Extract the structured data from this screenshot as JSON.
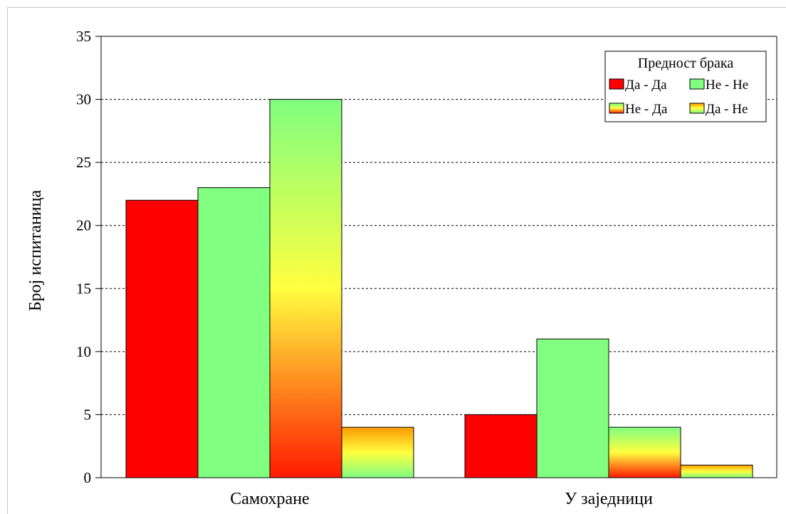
{
  "chart_data": {
    "type": "bar",
    "title": "",
    "xlabel": "",
    "ylabel": "Број испитаница",
    "ylim": [
      0,
      35
    ],
    "yticks": [
      0,
      5,
      10,
      15,
      20,
      25,
      30,
      35
    ],
    "grid": "horizontal-dotted",
    "categories": [
      "Самохране",
      "У заједници"
    ],
    "legend": {
      "title": "Предност брака",
      "placement": "top-right"
    },
    "series": [
      {
        "name": "Да - Да",
        "values": [
          22,
          5
        ],
        "fill": "solid-red",
        "color": "#ff0000"
      },
      {
        "name": "Не - Не",
        "values": [
          23,
          11
        ],
        "fill": "solid-green",
        "color": "#80ff80"
      },
      {
        "name": "Не - Да",
        "values": [
          30,
          4
        ],
        "fill": "gradient-red-yellow-green",
        "color": "#ffff40"
      },
      {
        "name": "Да - Не",
        "values": [
          4,
          1
        ],
        "fill": "gradient-orange-yellow-green",
        "color": "#ffd030"
      }
    ]
  }
}
